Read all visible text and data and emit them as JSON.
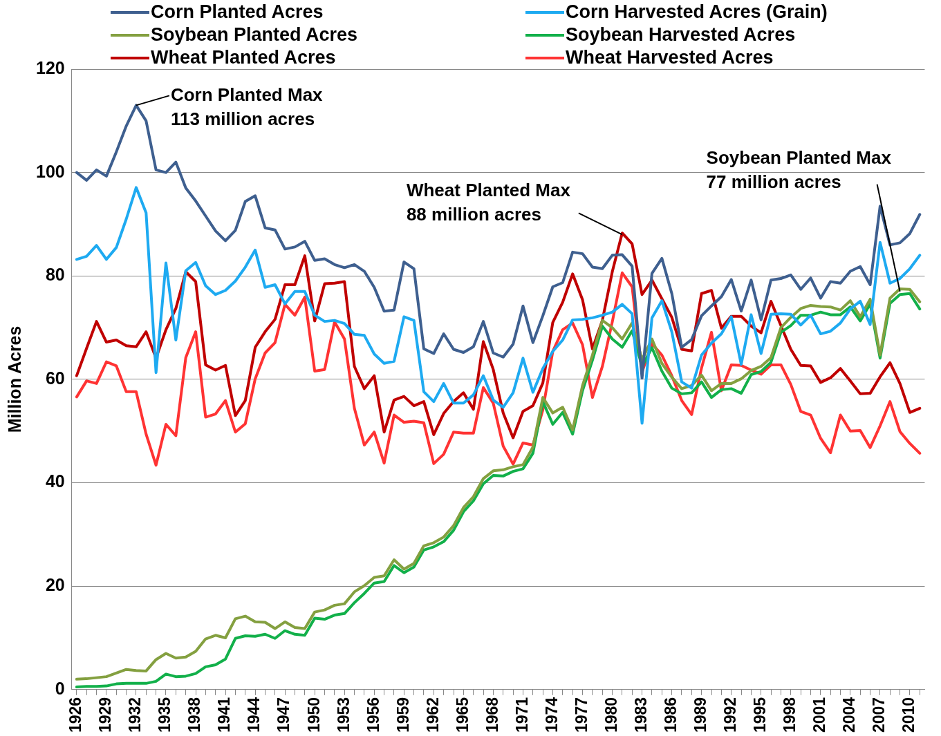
{
  "chart_data": {
    "type": "line",
    "ylabel": "Million Acres",
    "x": [
      1926,
      1927,
      1928,
      1929,
      1930,
      1931,
      1932,
      1933,
      1934,
      1935,
      1936,
      1937,
      1938,
      1939,
      1940,
      1941,
      1942,
      1943,
      1944,
      1945,
      1946,
      1947,
      1948,
      1949,
      1950,
      1951,
      1952,
      1953,
      1954,
      1955,
      1956,
      1957,
      1958,
      1959,
      1960,
      1961,
      1962,
      1963,
      1964,
      1965,
      1966,
      1967,
      1968,
      1969,
      1970,
      1971,
      1972,
      1973,
      1974,
      1975,
      1976,
      1977,
      1978,
      1979,
      1980,
      1981,
      1982,
      1983,
      1984,
      1985,
      1986,
      1987,
      1988,
      1989,
      1990,
      1991,
      1992,
      1993,
      1994,
      1995,
      1996,
      1997,
      1998,
      1999,
      2000,
      2001,
      2002,
      2003,
      2004,
      2005,
      2006,
      2007,
      2008,
      2009,
      2010,
      2011
    ],
    "xlim": [
      1925.5,
      2011.5
    ],
    "xticks": [
      1926,
      {
        "value": 1927,
        "label": null
      },
      {
        "value": 1928,
        "label": null
      },
      1929,
      {
        "value": 1930,
        "label": null
      },
      {
        "value": 1931,
        "label": null
      },
      1932,
      {
        "value": 1933,
        "label": null
      },
      {
        "value": 1934,
        "label": null
      },
      1935,
      {
        "value": 1936,
        "label": null
      },
      {
        "value": 1937,
        "label": null
      },
      1938,
      {
        "value": 1939,
        "label": null
      },
      {
        "value": 1940,
        "label": null
      },
      1941,
      {
        "value": 1942,
        "label": null
      },
      {
        "value": 1943,
        "label": null
      },
      1944,
      {
        "value": 1945,
        "label": null
      },
      {
        "value": 1946,
        "label": null
      },
      1947,
      {
        "value": 1948,
        "label": null
      },
      {
        "value": 1949,
        "label": null
      },
      1950,
      {
        "value": 1951,
        "label": null
      },
      {
        "value": 1952,
        "label": null
      },
      1953,
      {
        "value": 1954,
        "label": null
      },
      {
        "value": 1955,
        "label": null
      },
      1956,
      {
        "value": 1957,
        "label": null
      },
      {
        "value": 1958,
        "label": null
      },
      1959,
      {
        "value": 1960,
        "label": null
      },
      {
        "value": 1961,
        "label": null
      },
      1962,
      {
        "value": 1963,
        "label": null
      },
      {
        "value": 1964,
        "label": null
      },
      1965,
      {
        "value": 1966,
        "label": null
      },
      {
        "value": 1967,
        "label": null
      },
      1968,
      {
        "value": 1969,
        "label": null
      },
      {
        "value": 1970,
        "label": null
      },
      1971,
      {
        "value": 1972,
        "label": null
      },
      {
        "value": 1973,
        "label": null
      },
      1974,
      {
        "value": 1975,
        "label": null
      },
      {
        "value": 1976,
        "label": null
      },
      1977,
      {
        "value": 1978,
        "label": null
      },
      {
        "value": 1979,
        "label": null
      },
      1980,
      {
        "value": 1981,
        "label": null
      },
      {
        "value": 1982,
        "label": null
      },
      1983,
      {
        "value": 1984,
        "label": null
      },
      {
        "value": 1985,
        "label": null
      },
      1986,
      {
        "value": 1987,
        "label": null
      },
      {
        "value": 1988,
        "label": null
      },
      1989,
      {
        "value": 1990,
        "label": null
      },
      {
        "value": 1991,
        "label": null
      },
      1992,
      {
        "value": 1993,
        "label": null
      },
      {
        "value": 1994,
        "label": null
      },
      1995,
      {
        "value": 1996,
        "label": null
      },
      {
        "value": 1997,
        "label": null
      },
      1998,
      {
        "value": 1999,
        "label": null
      },
      {
        "value": 2000,
        "label": null
      },
      2001,
      {
        "value": 2002,
        "label": null
      },
      {
        "value": 2003,
        "label": null
      },
      2004,
      {
        "value": 2005,
        "label": null
      },
      {
        "value": 2006,
        "label": null
      },
      2007,
      {
        "value": 2008,
        "label": null
      },
      {
        "value": 2009,
        "label": null
      },
      2010,
      {
        "value": 2011,
        "label": null
      }
    ],
    "ylim": [
      0,
      120
    ],
    "yticks": [
      0,
      20,
      40,
      60,
      80,
      100,
      120
    ],
    "grid": "y",
    "legend": "top",
    "marker": "none",
    "line_style": "solid",
    "series": [
      {
        "name": "Corn Planted Acres",
        "color": "#3e5f8f",
        "values": [
          100,
          98.5,
          100.5,
          99.3,
          104,
          109,
          113,
          110,
          100.5,
          100,
          102,
          97,
          94.5,
          91.6,
          88.7,
          86.8,
          88.8,
          94.4,
          95.5,
          89.3,
          88.9,
          85.2,
          85.6,
          86.7,
          83,
          83.3,
          82.2,
          81.6,
          82.2,
          80.9,
          77.8,
          73.2,
          73.4,
          82.7,
          81.4,
          65.9,
          65,
          68.8,
          65.8,
          65.2,
          66.3,
          71.2,
          65.1,
          64.3,
          66.8,
          74.2,
          67.1,
          72.3,
          77.9,
          78.7,
          84.6,
          84.3,
          81.7,
          81.4,
          84,
          84.1,
          81.9,
          60.2,
          80.5,
          83.4,
          76.6,
          66.2,
          67.7,
          72.3,
          74.2,
          76,
          79.3,
          73.2,
          79.2,
          71.5,
          79.2,
          79.5,
          80.2,
          77.4,
          79.6,
          75.7,
          78.9,
          78.6,
          80.9,
          81.8,
          78.3,
          93.5,
          86,
          86.4,
          88.2,
          91.9
        ]
      },
      {
        "name": "Corn Harvested Acres (Grain)",
        "color": "#1eaaf1",
        "values": [
          83.2,
          83.8,
          85.9,
          83.2,
          85.5,
          91,
          97.1,
          92.2,
          61.3,
          82.5,
          67.6,
          81,
          82.6,
          78.1,
          76.4,
          77.2,
          79,
          81.7,
          85,
          77.8,
          78.3,
          74.6,
          77,
          77,
          72.4,
          71.2,
          71.4,
          70.8,
          68.7,
          68.5,
          64.9,
          63.1,
          63.5,
          72.1,
          71.4,
          57.6,
          55.7,
          59.2,
          55.4,
          55.4,
          57,
          60.7,
          56,
          54.6,
          57.4,
          64.1,
          57.5,
          62.1,
          65.4,
          67.6,
          71.5,
          71.6,
          71.9,
          72.4,
          73,
          74.5,
          72.7,
          51.5,
          71.9,
          75.2,
          69.2,
          59.5,
          58.3,
          64.7,
          67,
          68.8,
          72.1,
          62.9,
          72.5,
          65,
          72.6,
          72.7,
          72.6,
          70.5,
          72.4,
          68.8,
          69.3,
          70.9,
          73.6,
          75.1,
          70.6,
          86.5,
          78.6,
          79.5,
          81.4,
          84
        ]
      },
      {
        "name": "Soybean Planted Acres",
        "color": "#84a040",
        "values": [
          2,
          2.1,
          2.3,
          2.5,
          3.2,
          3.9,
          3.7,
          3.6,
          5.8,
          7,
          6.1,
          6.3,
          7.4,
          9.8,
          10.5,
          10,
          13.7,
          14.2,
          13.1,
          13,
          11.8,
          13.1,
          12,
          11.8,
          15,
          15.4,
          16.3,
          16.6,
          18.9,
          20.1,
          21.7,
          22,
          25.1,
          23.3,
          24.4,
          27.8,
          28.4,
          29.5,
          31.7,
          35.2,
          37.3,
          40.8,
          42.3,
          42.5,
          43.1,
          43.5,
          46.9,
          56.5,
          53.5,
          54.6,
          50.2,
          58.8,
          64.7,
          71.4,
          70,
          67.8,
          70.9,
          63.8,
          67.8,
          63.1,
          60.4,
          58.2,
          58.8,
          60.8,
          57.8,
          59.2,
          59.2,
          60.1,
          61.7,
          62.5,
          64.2,
          70,
          72,
          73.7,
          74.3,
          74.1,
          74,
          73.4,
          75.2,
          72.1,
          75.5,
          64.7,
          75.7,
          77.5,
          77.4,
          75
        ]
      },
      {
        "name": "Soybean Harvested Acres",
        "color": "#12b04a",
        "values": [
          0.5,
          0.6,
          0.6,
          0.7,
          1.1,
          1.2,
          1.2,
          1.2,
          1.6,
          3,
          2.5,
          2.6,
          3.1,
          4.4,
          4.8,
          5.9,
          9.9,
          10.4,
          10.3,
          10.7,
          9.9,
          11.4,
          10.7,
          10.5,
          13.8,
          13.6,
          14.4,
          14.7,
          16.8,
          18.6,
          20.6,
          20.9,
          24,
          22.6,
          23.7,
          27,
          27.6,
          28.6,
          30.8,
          34.4,
          36.5,
          39.8,
          41.4,
          41.3,
          42.2,
          42.7,
          45.7,
          55.7,
          51.3,
          53.6,
          49.4,
          57.8,
          63.7,
          70.3,
          67.8,
          66.2,
          69.4,
          62.5,
          66.1,
          61.6,
          58.3,
          57.2,
          57.4,
          59.5,
          56.5,
          58,
          58.2,
          57.3,
          60.9,
          61.5,
          63.3,
          69.1,
          70.4,
          72.4,
          72.4,
          73,
          72.5,
          72.5,
          74,
          71.3,
          74.6,
          64.1,
          74.7,
          76.4,
          76.6,
          73.6
        ]
      },
      {
        "name": "Wheat Planted Acres",
        "color": "#c00000",
        "values": [
          60.7,
          66,
          71.2,
          67.2,
          67.6,
          66.5,
          66.3,
          69.2,
          64.1,
          69.6,
          73.7,
          80.8,
          78.9,
          62.8,
          61.8,
          62.7,
          53,
          55.9,
          66.2,
          69.2,
          71.6,
          78.3,
          78.3,
          83.9,
          71.3,
          78.5,
          78.6,
          78.9,
          62.5,
          58.2,
          60.7,
          49.8,
          56,
          56.7,
          54.9,
          55.7,
          49.3,
          53.4,
          55.7,
          57.4,
          54.2,
          67.3,
          61.9,
          53.5,
          48.7,
          53.8,
          54.9,
          59.3,
          71,
          74.9,
          80.4,
          75.4,
          65.9,
          71.4,
          80.8,
          88.3,
          86.2,
          76.4,
          79.2,
          75.6,
          72,
          65.8,
          65.5,
          76.6,
          77.2,
          69.9,
          72.2,
          72.2,
          70.3,
          69,
          75.1,
          70.4,
          65.8,
          62.7,
          62.6,
          59.4,
          60.3,
          62.1,
          59.7,
          57.2,
          57.3,
          60.5,
          63.2,
          59.2,
          53.6,
          54.4
        ]
      },
      {
        "name": "Wheat Harvested Acres",
        "color": "#ff3333",
        "values": [
          56.6,
          59.7,
          59.2,
          63.4,
          62.6,
          57.6,
          57.6,
          49.4,
          43.4,
          51.3,
          49.1,
          64.2,
          69.2,
          52.7,
          53.3,
          55.9,
          49.8,
          51.4,
          60.1,
          65.1,
          67.1,
          74.5,
          72.4,
          75.9,
          61.6,
          61.9,
          71.1,
          67.8,
          54.4,
          47.3,
          49.8,
          43.8,
          53.1,
          51.7,
          51.9,
          51.6,
          43.7,
          45.5,
          49.8,
          49.6,
          49.6,
          58.4,
          55.4,
          47.1,
          43.6,
          47.7,
          47.3,
          54.1,
          65.4,
          69.6,
          70.9,
          66.7,
          56.5,
          62.5,
          71.1,
          80.6,
          77.9,
          61.4,
          66.9,
          64.7,
          60.7,
          55.9,
          53.2,
          62.2,
          69.1,
          57.8,
          62.8,
          62.7,
          61.8,
          61,
          62.8,
          62.8,
          59,
          53.8,
          53.1,
          48.6,
          45.8,
          53.1,
          50,
          50.1,
          46.8,
          51,
          55.7,
          49.9,
          47.6,
          45.7
        ]
      }
    ],
    "annotations": [
      {
        "text": "Corn Planted Max\n113 million acres",
        "x": 1932,
        "y": 113
      },
      {
        "text": "Wheat Planted Max\n88 million acres",
        "x": 1981,
        "y": 88
      },
      {
        "text": "Soybean Planted Max\n77 million acres",
        "x": 2009,
        "y": 77
      }
    ]
  }
}
